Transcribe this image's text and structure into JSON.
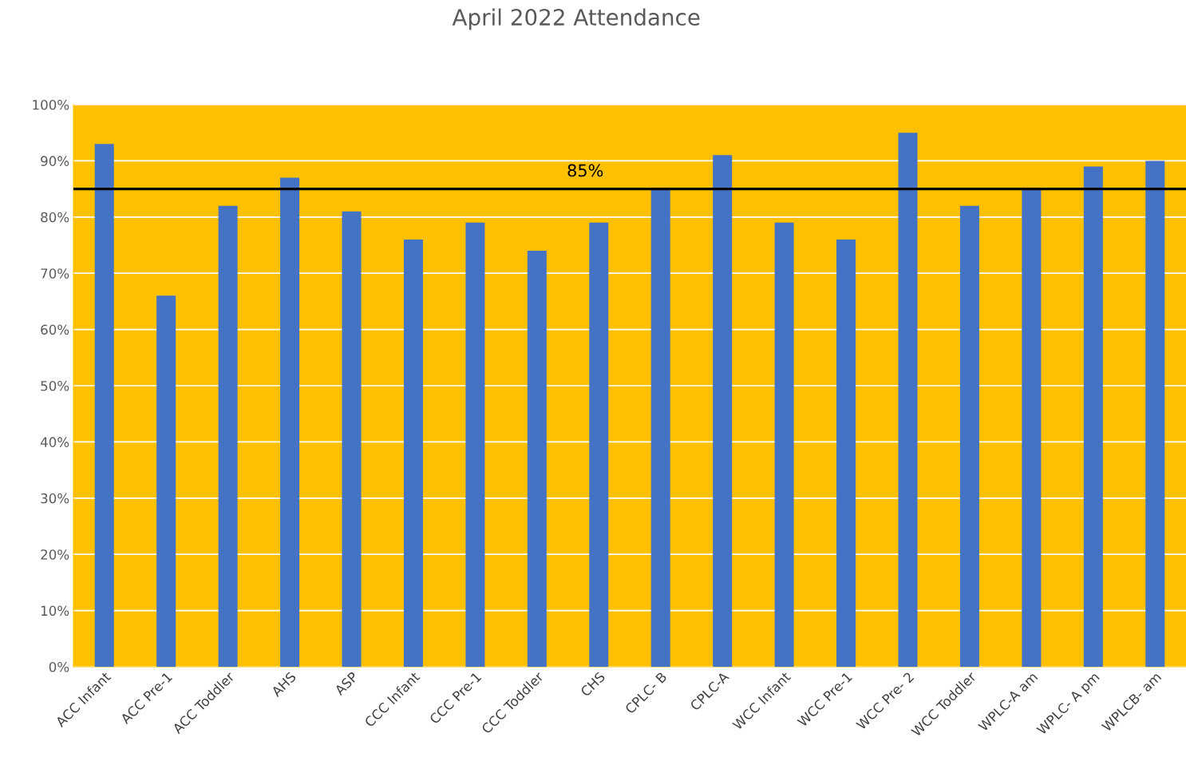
{
  "chart_data": {
    "type": "bar",
    "title": "April 2022 Attendance",
    "categories": [
      "ACC Infant",
      "ACC Pre-1",
      "ACC Toddler",
      "AHS",
      "ASP",
      "CCC Infant",
      "CCC Pre-1",
      "CCC Toddler",
      "CHS",
      "CPLC- B",
      "CPLC-A",
      "WCC Infant",
      "WCC Pre-1",
      "WCC Pre- 2",
      "WCC Toddler",
      "WPLC-A am",
      "WPLC- A pm",
      "WPLCB- am"
    ],
    "values": [
      93,
      66,
      82,
      87,
      81,
      76,
      79,
      74,
      79,
      85,
      91,
      79,
      76,
      95,
      82,
      85,
      89,
      90
    ],
    "color": "#4472c4",
    "ylim": [
      0,
      100
    ],
    "yticks": [
      {
        "value": 0,
        "label": "0%"
      },
      {
        "value": 10,
        "label": "10%"
      },
      {
        "value": 20,
        "label": "20%"
      },
      {
        "value": 30,
        "label": "30%"
      },
      {
        "value": 40,
        "label": "40%"
      },
      {
        "value": 50,
        "label": "50%"
      },
      {
        "value": 60,
        "label": "60%"
      },
      {
        "value": 70,
        "label": "70%"
      },
      {
        "value": 80,
        "label": "80%"
      },
      {
        "value": 90,
        "label": "90%"
      },
      {
        "value": 100,
        "label": "100%"
      }
    ],
    "ref_lines": [
      {
        "axis": "y",
        "value": 85,
        "label": "85%",
        "color": "#000000"
      }
    ],
    "grid": "y"
  }
}
